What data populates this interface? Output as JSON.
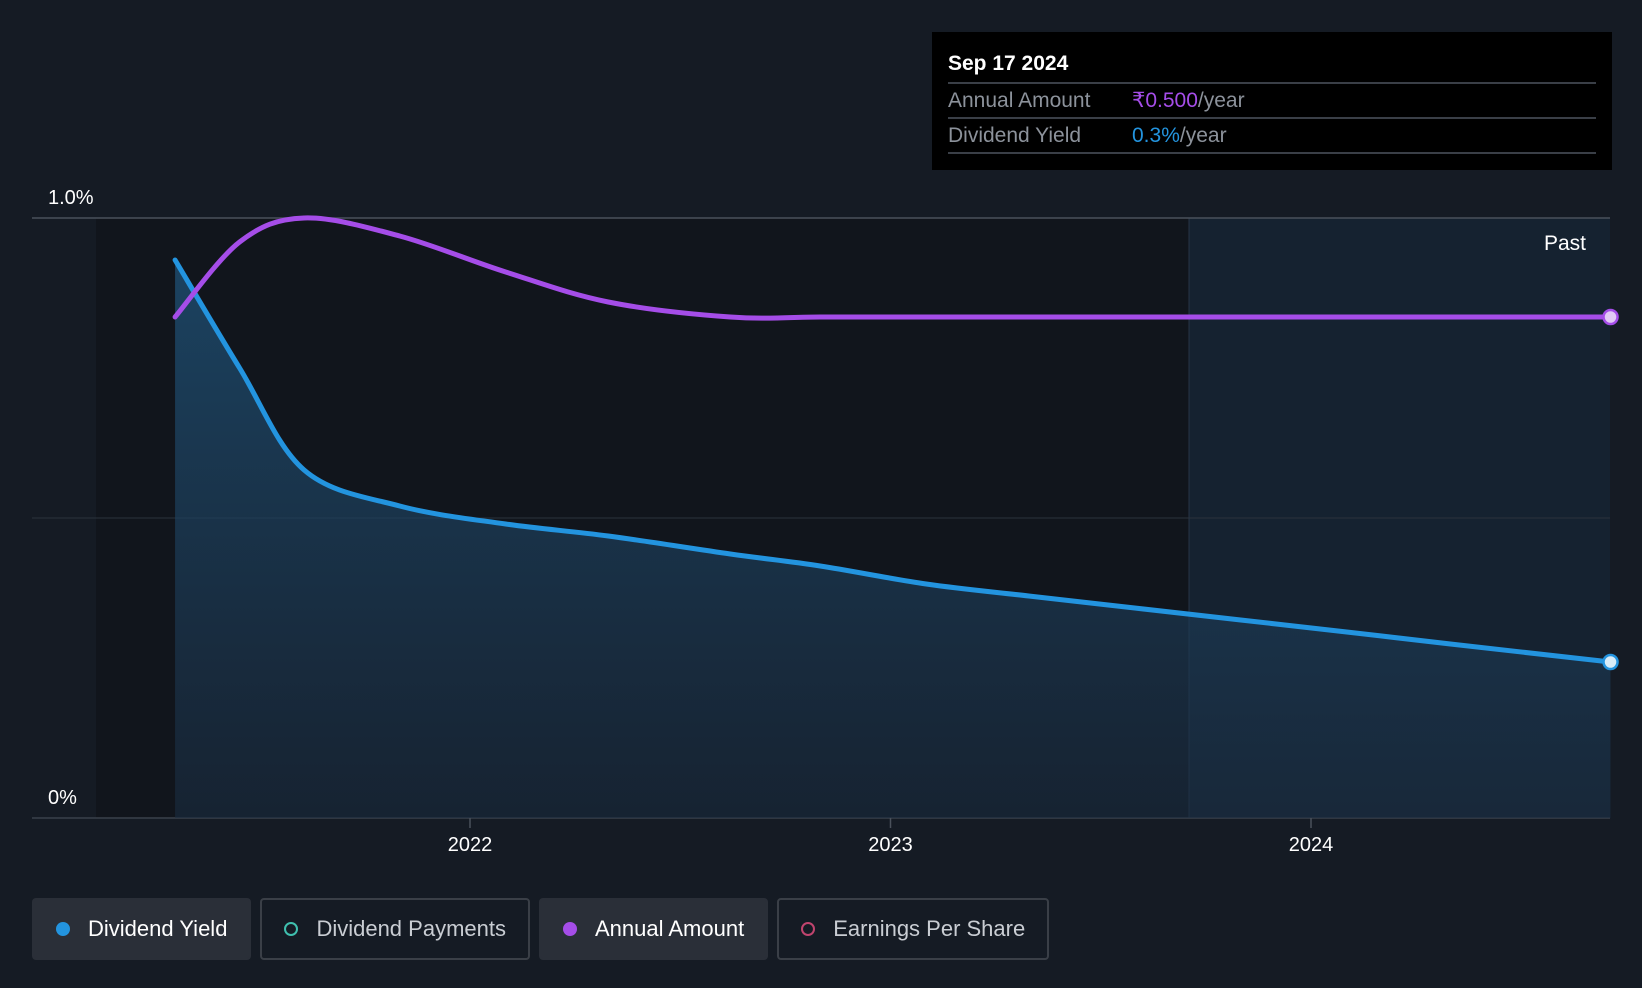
{
  "chart_data": {
    "type": "line",
    "x": [
      "2021-04-20",
      "2021-06-15",
      "2021-08-10",
      "2021-11-01",
      "2022-02-01",
      "2022-05-01",
      "2022-08-15",
      "2022-11-01",
      "2023-02-01",
      "2023-05-01",
      "2023-08-01",
      "2023-11-01",
      "2024-02-01",
      "2024-05-01",
      "2024-09-17"
    ],
    "series": [
      {
        "name": "Dividend Yield",
        "color": "#2394df",
        "values": [
          0.93,
          0.75,
          0.58,
          0.52,
          0.49,
          0.47,
          0.44,
          0.42,
          0.39,
          0.37,
          0.35,
          0.33,
          0.31,
          0.29,
          0.26
        ]
      },
      {
        "name": "Annual Amount",
        "color": "#a54de8",
        "values": [
          0.835,
          0.96,
          1.0,
          0.97,
          0.91,
          0.86,
          0.835,
          0.835,
          0.835,
          0.835,
          0.835,
          0.835,
          0.835,
          0.835,
          0.835
        ]
      }
    ],
    "y_ticks": [
      "1.0%",
      "0%"
    ],
    "x_ticks": [
      "2022",
      "2023",
      "2024"
    ],
    "ylim": [
      0,
      1.0
    ],
    "region_label": "Past",
    "grid": true
  },
  "tooltip": {
    "date": "Sep 17 2024",
    "rows": [
      {
        "label": "Annual Amount",
        "value": "₹0.500",
        "unit": "/year",
        "color": "#a54de8"
      },
      {
        "label": "Dividend Yield",
        "value": "0.3%",
        "unit": "/year",
        "color": "#2394df"
      }
    ]
  },
  "legend": [
    {
      "label": "Dividend Yield",
      "color": "#2394df",
      "filled": true,
      "active": true
    },
    {
      "label": "Dividend Payments",
      "color": "#3fbfae",
      "filled": false,
      "active": false
    },
    {
      "label": "Annual Amount",
      "color": "#a54de8",
      "filled": true,
      "active": true
    },
    {
      "label": "Earnings Per Share",
      "color": "#c0446e",
      "filled": false,
      "active": false
    }
  ]
}
